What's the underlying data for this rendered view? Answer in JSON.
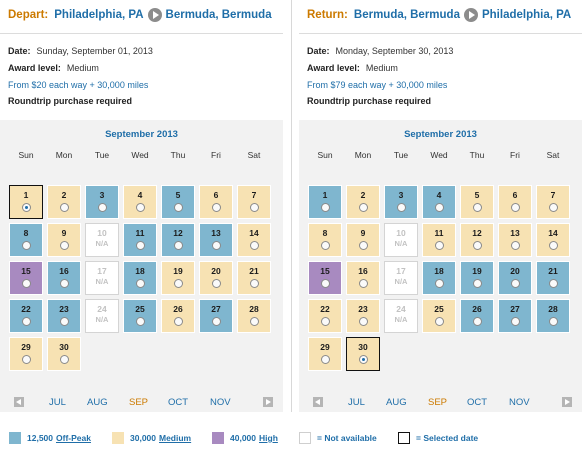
{
  "depart": {
    "label": "Depart:",
    "origin": "Philadelphia, PA",
    "destination": "Bermuda, Bermuda",
    "date_label": "Date:",
    "date_value": "Sunday, September 01, 2013",
    "award_label": "Award level:",
    "award_value": "Medium",
    "price": "From $20 each way + 30,000 miles",
    "note": "Roundtrip purchase required",
    "calendar": {
      "month": "September 2013",
      "days": [
        {
          "day": "1",
          "status": "medium",
          "selected": true
        },
        {
          "day": "2",
          "status": "medium"
        },
        {
          "day": "3",
          "status": "offpeak"
        },
        {
          "day": "4",
          "status": "medium"
        },
        {
          "day": "5",
          "status": "offpeak"
        },
        {
          "day": "6",
          "status": "medium"
        },
        {
          "day": "7",
          "status": "medium"
        },
        {
          "day": "8",
          "status": "offpeak"
        },
        {
          "day": "9",
          "status": "medium"
        },
        {
          "day": "10",
          "status": "na"
        },
        {
          "day": "11",
          "status": "offpeak"
        },
        {
          "day": "12",
          "status": "offpeak"
        },
        {
          "day": "13",
          "status": "offpeak"
        },
        {
          "day": "14",
          "status": "medium"
        },
        {
          "day": "15",
          "status": "high"
        },
        {
          "day": "16",
          "status": "offpeak"
        },
        {
          "day": "17",
          "status": "na"
        },
        {
          "day": "18",
          "status": "offpeak"
        },
        {
          "day": "19",
          "status": "medium"
        },
        {
          "day": "20",
          "status": "medium"
        },
        {
          "day": "21",
          "status": "medium"
        },
        {
          "day": "22",
          "status": "offpeak"
        },
        {
          "day": "23",
          "status": "offpeak"
        },
        {
          "day": "24",
          "status": "na"
        },
        {
          "day": "25",
          "status": "offpeak"
        },
        {
          "day": "26",
          "status": "medium"
        },
        {
          "day": "27",
          "status": "offpeak"
        },
        {
          "day": "28",
          "status": "medium"
        },
        {
          "day": "29",
          "status": "medium"
        },
        {
          "day": "30",
          "status": "medium"
        }
      ]
    }
  },
  "return": {
    "label": "Return:",
    "origin": "Bermuda, Bermuda",
    "destination": "Philadelphia, PA",
    "date_label": "Date:",
    "date_value": "Monday, September 30, 2013",
    "award_label": "Award level:",
    "award_value": "Medium",
    "price": "From $79 each way + 30,000 miles",
    "note": "Roundtrip purchase required",
    "calendar": {
      "month": "September 2013",
      "days": [
        {
          "day": "1",
          "status": "offpeak"
        },
        {
          "day": "2",
          "status": "medium"
        },
        {
          "day": "3",
          "status": "offpeak"
        },
        {
          "day": "4",
          "status": "offpeak"
        },
        {
          "day": "5",
          "status": "medium"
        },
        {
          "day": "6",
          "status": "medium"
        },
        {
          "day": "7",
          "status": "medium"
        },
        {
          "day": "8",
          "status": "medium"
        },
        {
          "day": "9",
          "status": "medium"
        },
        {
          "day": "10",
          "status": "na"
        },
        {
          "day": "11",
          "status": "medium"
        },
        {
          "day": "12",
          "status": "medium"
        },
        {
          "day": "13",
          "status": "medium"
        },
        {
          "day": "14",
          "status": "medium"
        },
        {
          "day": "15",
          "status": "high"
        },
        {
          "day": "16",
          "status": "medium"
        },
        {
          "day": "17",
          "status": "na"
        },
        {
          "day": "18",
          "status": "offpeak"
        },
        {
          "day": "19",
          "status": "offpeak"
        },
        {
          "day": "20",
          "status": "offpeak"
        },
        {
          "day": "21",
          "status": "offpeak"
        },
        {
          "day": "22",
          "status": "medium"
        },
        {
          "day": "23",
          "status": "medium"
        },
        {
          "day": "24",
          "status": "na"
        },
        {
          "day": "25",
          "status": "medium"
        },
        {
          "day": "26",
          "status": "offpeak"
        },
        {
          "day": "27",
          "status": "offpeak"
        },
        {
          "day": "28",
          "status": "offpeak"
        },
        {
          "day": "29",
          "status": "medium"
        },
        {
          "day": "30",
          "status": "medium",
          "selected": true
        }
      ]
    }
  },
  "weekdays": [
    "Sun",
    "Mon",
    "Tue",
    "Wed",
    "Thu",
    "Fri",
    "Sat"
  ],
  "first_weekday_index": 0,
  "na_text": "N/A",
  "month_nav": [
    "JUL",
    "AUG",
    "SEP",
    "OCT",
    "NOV"
  ],
  "current_month": "SEP",
  "legend": {
    "offpeak_points": "12,500",
    "offpeak_label": "Off-Peak",
    "medium_points": "30,000",
    "medium_label": "Medium",
    "high_points": "40,000",
    "high_label": "High",
    "na_label": "= Not available",
    "selected_label": "= Selected date"
  },
  "colors": {
    "offpeak": "#7fb6cf",
    "medium": "#f7e2b3",
    "high": "#a88ac0",
    "link": "#1f6ea8",
    "accent": "#cc7a00"
  },
  "icons": {
    "route_arrow": "arrow-right-circle-icon",
    "prev": "chevron-left-icon",
    "next": "chevron-right-icon"
  }
}
